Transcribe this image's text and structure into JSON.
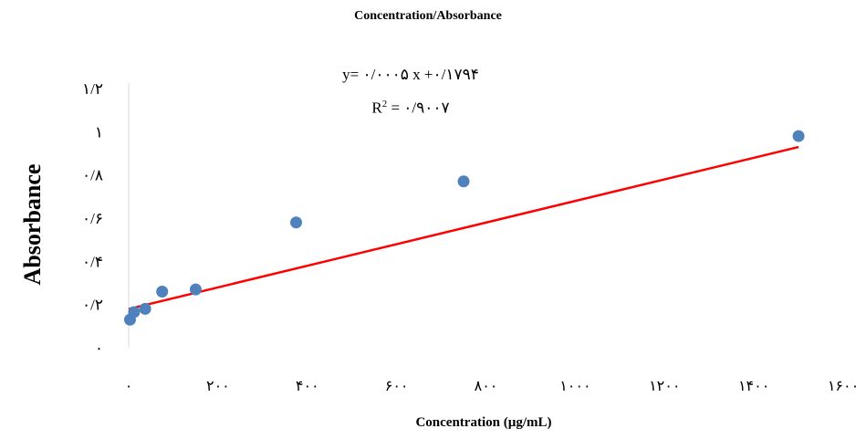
{
  "chart_data": {
    "type": "scatter",
    "title": "Concentration/Absorbance",
    "xlabel": "Concentration (µg/mL)",
    "ylabel": "Absorbance",
    "xlim": [
      0,
      1600
    ],
    "ylim": [
      0,
      1.2
    ],
    "x_ticks": [
      {
        "value": 0,
        "label": "۰"
      },
      {
        "value": 200,
        "label": "۲۰۰"
      },
      {
        "value": 400,
        "label": "۴۰۰"
      },
      {
        "value": 600,
        "label": "۶۰۰"
      },
      {
        "value": 800,
        "label": "۸۰۰"
      },
      {
        "value": 1000,
        "label": "۱۰۰۰"
      },
      {
        "value": 1200,
        "label": "۱۲۰۰"
      },
      {
        "value": 1400,
        "label": "۱۴۰۰"
      },
      {
        "value": 1600,
        "label": "۱۶۰۰"
      }
    ],
    "y_ticks": [
      {
        "value": 0,
        "label": "۰"
      },
      {
        "value": 0.2,
        "label": "۰/۲"
      },
      {
        "value": 0.4,
        "label": "۰/۴"
      },
      {
        "value": 0.6,
        "label": "۰/۶"
      },
      {
        "value": 0.8,
        "label": "۰/۸"
      },
      {
        "value": 1.0,
        "label": "۱"
      },
      {
        "value": 1.2,
        "label": "۱/۲"
      }
    ],
    "series": [
      {
        "points": [
          {
            "x": 3,
            "y": 0.13
          },
          {
            "x": 12,
            "y": 0.165
          },
          {
            "x": 37,
            "y": 0.18
          },
          {
            "x": 75,
            "y": 0.26
          },
          {
            "x": 150,
            "y": 0.27
          },
          {
            "x": 375,
            "y": 0.58
          },
          {
            "x": 750,
            "y": 0.77
          },
          {
            "x": 1500,
            "y": 0.98
          }
        ],
        "color": "#4f81bd"
      }
    ],
    "trendline": {
      "slope": 0.0005,
      "intercept": 0.1794,
      "x_range": [
        0,
        1500
      ],
      "color": "#ff0000",
      "equation_text": "y= ۰/۰۰۰۵  x +۰/۱۷۹۴",
      "r2_label": "R",
      "r2_value_text": " = ۰/۹۰۰۷"
    },
    "grid": false,
    "legend": "none"
  }
}
